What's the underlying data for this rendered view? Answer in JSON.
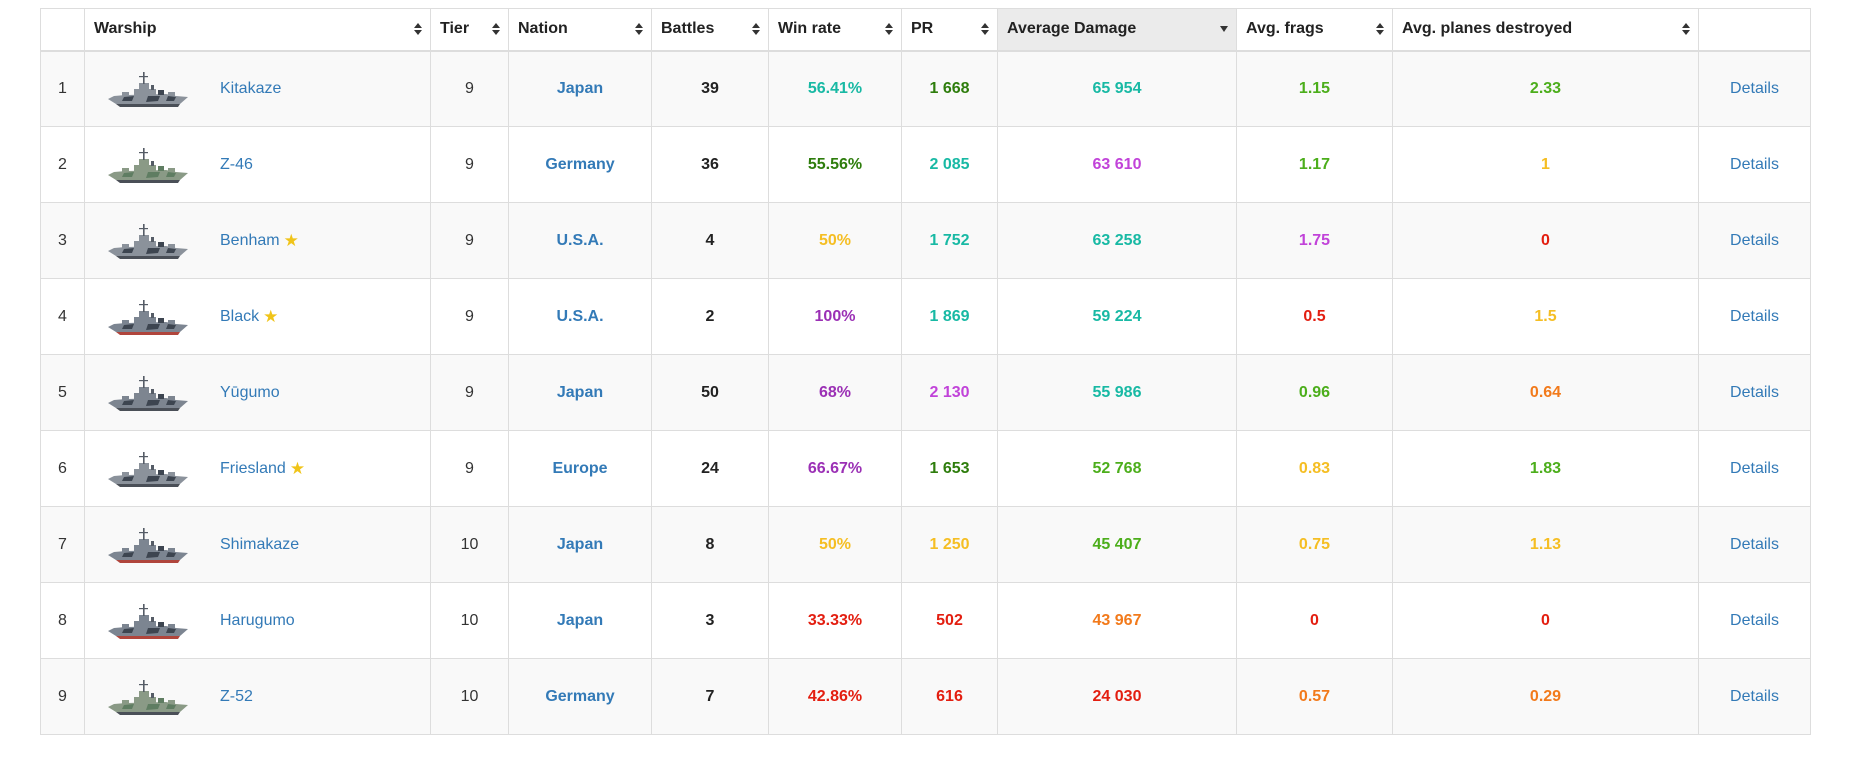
{
  "colors": {
    "super_unicum": "#9b30b5",
    "unicum": "#c143d9",
    "great": "#18b9a4",
    "very_good": "#4cae1b",
    "good": "#2e7d0c",
    "average": "#f5be23",
    "below_average": "#f27a1b",
    "bad": "#e31e10",
    "link": "#337ab7"
  },
  "table": {
    "columns": [
      {
        "label": "",
        "sortable": false
      },
      {
        "label": "Warship",
        "sortable": true
      },
      {
        "label": "Tier",
        "sortable": true
      },
      {
        "label": "Nation",
        "sortable": true
      },
      {
        "label": "Battles",
        "sortable": true
      },
      {
        "label": "Win rate",
        "sortable": true
      },
      {
        "label": "PR",
        "sortable": true
      },
      {
        "label": "Average Damage",
        "sortable": true,
        "sorted": "desc"
      },
      {
        "label": "Avg. frags",
        "sortable": true
      },
      {
        "label": "Avg. planes destroyed",
        "sortable": true
      },
      {
        "label": "",
        "sortable": false
      }
    ],
    "rows": [
      {
        "num": "1",
        "name": "Kitakaze",
        "premium": false,
        "tier": "9",
        "nation": "Japan",
        "battles": "39",
        "winrate": "56.41%",
        "winrate_color": "#18b9a4",
        "pr": "1 668",
        "pr_color": "#2e7d0c",
        "damage": "65 954",
        "damage_color": "#18b9a4",
        "frags": "1.15",
        "frags_color": "#4cae1b",
        "planes": "2.33",
        "planes_color": "#4cae1b",
        "details": "Details",
        "camo": "dazzle"
      },
      {
        "num": "2",
        "name": "Z-46",
        "premium": false,
        "tier": "9",
        "nation": "Germany",
        "battles": "36",
        "winrate": "55.56%",
        "winrate_color": "#2e7d0c",
        "pr": "2 085",
        "pr_color": "#18b9a4",
        "damage": "63 610",
        "damage_color": "#c143d9",
        "frags": "1.17",
        "frags_color": "#4cae1b",
        "planes": "1",
        "planes_color": "#f5be23",
        "details": "Details",
        "camo": "green"
      },
      {
        "num": "3",
        "name": "Benham",
        "premium": true,
        "tier": "9",
        "nation": "U.S.A.",
        "battles": "4",
        "winrate": "50%",
        "winrate_color": "#f5be23",
        "pr": "1 752",
        "pr_color": "#18b9a4",
        "damage": "63 258",
        "damage_color": "#18b9a4",
        "frags": "1.75",
        "frags_color": "#c143d9",
        "planes": "0",
        "planes_color": "#e31e10",
        "details": "Details",
        "camo": "dazzle"
      },
      {
        "num": "4",
        "name": "Black",
        "premium": true,
        "tier": "9",
        "nation": "U.S.A.",
        "battles": "2",
        "winrate": "100%",
        "winrate_color": "#9b30b5",
        "pr": "1 869",
        "pr_color": "#18b9a4",
        "damage": "59 224",
        "damage_color": "#18b9a4",
        "frags": "0.5",
        "frags_color": "#e31e10",
        "planes": "1.5",
        "planes_color": "#f5be23",
        "details": "Details",
        "camo": "red"
      },
      {
        "num": "5",
        "name": "Yūgumo",
        "premium": false,
        "tier": "9",
        "nation": "Japan",
        "battles": "50",
        "winrate": "68%",
        "winrate_color": "#9b30b5",
        "pr": "2 130",
        "pr_color": "#c143d9",
        "damage": "55 986",
        "damage_color": "#18b9a4",
        "frags": "0.96",
        "frags_color": "#4cae1b",
        "planes": "0.64",
        "planes_color": "#f27a1b",
        "details": "Details",
        "camo": "grey"
      },
      {
        "num": "6",
        "name": "Friesland",
        "premium": true,
        "tier": "9",
        "nation": "Europe",
        "battles": "24",
        "winrate": "66.67%",
        "winrate_color": "#9b30b5",
        "pr": "1 653",
        "pr_color": "#2e7d0c",
        "damage": "52 768",
        "damage_color": "#4cae1b",
        "frags": "0.83",
        "frags_color": "#f5be23",
        "planes": "1.83",
        "planes_color": "#4cae1b",
        "details": "Details",
        "camo": "dazzle"
      },
      {
        "num": "7",
        "name": "Shimakaze",
        "premium": false,
        "tier": "10",
        "nation": "Japan",
        "battles": "8",
        "winrate": "50%",
        "winrate_color": "#f5be23",
        "pr": "1 250",
        "pr_color": "#f5be23",
        "damage": "45 407",
        "damage_color": "#4cae1b",
        "frags": "0.75",
        "frags_color": "#f5be23",
        "planes": "1.13",
        "planes_color": "#f5be23",
        "details": "Details",
        "camo": "red"
      },
      {
        "num": "8",
        "name": "Harugumo",
        "premium": false,
        "tier": "10",
        "nation": "Japan",
        "battles": "3",
        "winrate": "33.33%",
        "winrate_color": "#e31e10",
        "pr": "502",
        "pr_color": "#e31e10",
        "damage": "43 967",
        "damage_color": "#f27a1b",
        "frags": "0",
        "frags_color": "#e31e10",
        "planes": "0",
        "planes_color": "#e31e10",
        "details": "Details",
        "camo": "red"
      },
      {
        "num": "9",
        "name": "Z-52",
        "premium": false,
        "tier": "10",
        "nation": "Germany",
        "battles": "7",
        "winrate": "42.86%",
        "winrate_color": "#e31e10",
        "pr": "616",
        "pr_color": "#e31e10",
        "damage": "24 030",
        "damage_color": "#e31e10",
        "frags": "0.57",
        "frags_color": "#f27a1b",
        "planes": "0.29",
        "planes_color": "#f27a1b",
        "details": "Details",
        "camo": "green"
      }
    ]
  }
}
